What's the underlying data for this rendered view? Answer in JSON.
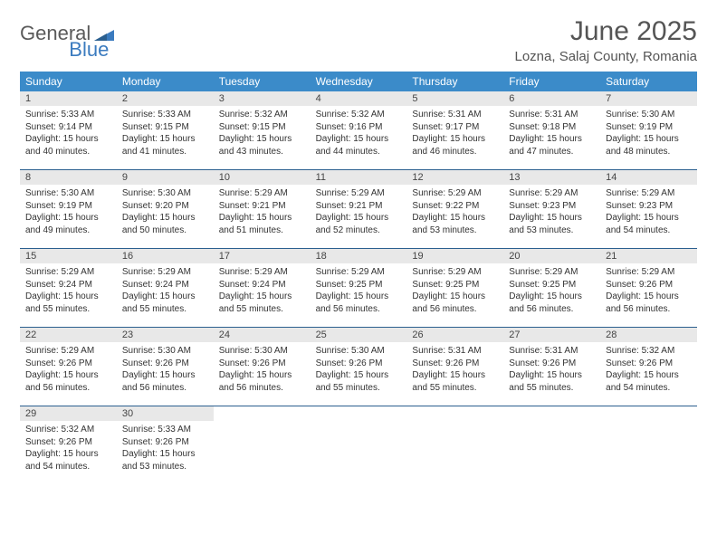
{
  "logo": {
    "general": "General",
    "blue": "Blue"
  },
  "title": "June 2025",
  "location": "Lozna, Salaj County, Romania",
  "colors": {
    "header_bg": "#3b8bc9",
    "row_border": "#2b5f8f",
    "daynum_bg": "#e8e8e8",
    "logo_gray": "#5a5a5a",
    "logo_blue": "#3b7bbf",
    "text": "#333333",
    "title_color": "#555555",
    "background": "#ffffff"
  },
  "typography": {
    "title_fontsize": 30,
    "location_fontsize": 15,
    "dow_fontsize": 12,
    "daynum_fontsize": 11,
    "body_fontsize": 10
  },
  "day_names": [
    "Sunday",
    "Monday",
    "Tuesday",
    "Wednesday",
    "Thursday",
    "Friday",
    "Saturday"
  ],
  "weeks": [
    [
      {
        "n": "1",
        "sr": "Sunrise: 5:33 AM",
        "ss": "Sunset: 9:14 PM",
        "dl": "Daylight: 15 hours and 40 minutes."
      },
      {
        "n": "2",
        "sr": "Sunrise: 5:33 AM",
        "ss": "Sunset: 9:15 PM",
        "dl": "Daylight: 15 hours and 41 minutes."
      },
      {
        "n": "3",
        "sr": "Sunrise: 5:32 AM",
        "ss": "Sunset: 9:15 PM",
        "dl": "Daylight: 15 hours and 43 minutes."
      },
      {
        "n": "4",
        "sr": "Sunrise: 5:32 AM",
        "ss": "Sunset: 9:16 PM",
        "dl": "Daylight: 15 hours and 44 minutes."
      },
      {
        "n": "5",
        "sr": "Sunrise: 5:31 AM",
        "ss": "Sunset: 9:17 PM",
        "dl": "Daylight: 15 hours and 46 minutes."
      },
      {
        "n": "6",
        "sr": "Sunrise: 5:31 AM",
        "ss": "Sunset: 9:18 PM",
        "dl": "Daylight: 15 hours and 47 minutes."
      },
      {
        "n": "7",
        "sr": "Sunrise: 5:30 AM",
        "ss": "Sunset: 9:19 PM",
        "dl": "Daylight: 15 hours and 48 minutes."
      }
    ],
    [
      {
        "n": "8",
        "sr": "Sunrise: 5:30 AM",
        "ss": "Sunset: 9:19 PM",
        "dl": "Daylight: 15 hours and 49 minutes."
      },
      {
        "n": "9",
        "sr": "Sunrise: 5:30 AM",
        "ss": "Sunset: 9:20 PM",
        "dl": "Daylight: 15 hours and 50 minutes."
      },
      {
        "n": "10",
        "sr": "Sunrise: 5:29 AM",
        "ss": "Sunset: 9:21 PM",
        "dl": "Daylight: 15 hours and 51 minutes."
      },
      {
        "n": "11",
        "sr": "Sunrise: 5:29 AM",
        "ss": "Sunset: 9:21 PM",
        "dl": "Daylight: 15 hours and 52 minutes."
      },
      {
        "n": "12",
        "sr": "Sunrise: 5:29 AM",
        "ss": "Sunset: 9:22 PM",
        "dl": "Daylight: 15 hours and 53 minutes."
      },
      {
        "n": "13",
        "sr": "Sunrise: 5:29 AM",
        "ss": "Sunset: 9:23 PM",
        "dl": "Daylight: 15 hours and 53 minutes."
      },
      {
        "n": "14",
        "sr": "Sunrise: 5:29 AM",
        "ss": "Sunset: 9:23 PM",
        "dl": "Daylight: 15 hours and 54 minutes."
      }
    ],
    [
      {
        "n": "15",
        "sr": "Sunrise: 5:29 AM",
        "ss": "Sunset: 9:24 PM",
        "dl": "Daylight: 15 hours and 55 minutes."
      },
      {
        "n": "16",
        "sr": "Sunrise: 5:29 AM",
        "ss": "Sunset: 9:24 PM",
        "dl": "Daylight: 15 hours and 55 minutes."
      },
      {
        "n": "17",
        "sr": "Sunrise: 5:29 AM",
        "ss": "Sunset: 9:24 PM",
        "dl": "Daylight: 15 hours and 55 minutes."
      },
      {
        "n": "18",
        "sr": "Sunrise: 5:29 AM",
        "ss": "Sunset: 9:25 PM",
        "dl": "Daylight: 15 hours and 56 minutes."
      },
      {
        "n": "19",
        "sr": "Sunrise: 5:29 AM",
        "ss": "Sunset: 9:25 PM",
        "dl": "Daylight: 15 hours and 56 minutes."
      },
      {
        "n": "20",
        "sr": "Sunrise: 5:29 AM",
        "ss": "Sunset: 9:25 PM",
        "dl": "Daylight: 15 hours and 56 minutes."
      },
      {
        "n": "21",
        "sr": "Sunrise: 5:29 AM",
        "ss": "Sunset: 9:26 PM",
        "dl": "Daylight: 15 hours and 56 minutes."
      }
    ],
    [
      {
        "n": "22",
        "sr": "Sunrise: 5:29 AM",
        "ss": "Sunset: 9:26 PM",
        "dl": "Daylight: 15 hours and 56 minutes."
      },
      {
        "n": "23",
        "sr": "Sunrise: 5:30 AM",
        "ss": "Sunset: 9:26 PM",
        "dl": "Daylight: 15 hours and 56 minutes."
      },
      {
        "n": "24",
        "sr": "Sunrise: 5:30 AM",
        "ss": "Sunset: 9:26 PM",
        "dl": "Daylight: 15 hours and 56 minutes."
      },
      {
        "n": "25",
        "sr": "Sunrise: 5:30 AM",
        "ss": "Sunset: 9:26 PM",
        "dl": "Daylight: 15 hours and 55 minutes."
      },
      {
        "n": "26",
        "sr": "Sunrise: 5:31 AM",
        "ss": "Sunset: 9:26 PM",
        "dl": "Daylight: 15 hours and 55 minutes."
      },
      {
        "n": "27",
        "sr": "Sunrise: 5:31 AM",
        "ss": "Sunset: 9:26 PM",
        "dl": "Daylight: 15 hours and 55 minutes."
      },
      {
        "n": "28",
        "sr": "Sunrise: 5:32 AM",
        "ss": "Sunset: 9:26 PM",
        "dl": "Daylight: 15 hours and 54 minutes."
      }
    ],
    [
      {
        "n": "29",
        "sr": "Sunrise: 5:32 AM",
        "ss": "Sunset: 9:26 PM",
        "dl": "Daylight: 15 hours and 54 minutes."
      },
      {
        "n": "30",
        "sr": "Sunrise: 5:33 AM",
        "ss": "Sunset: 9:26 PM",
        "dl": "Daylight: 15 hours and 53 minutes."
      },
      null,
      null,
      null,
      null,
      null
    ]
  ]
}
